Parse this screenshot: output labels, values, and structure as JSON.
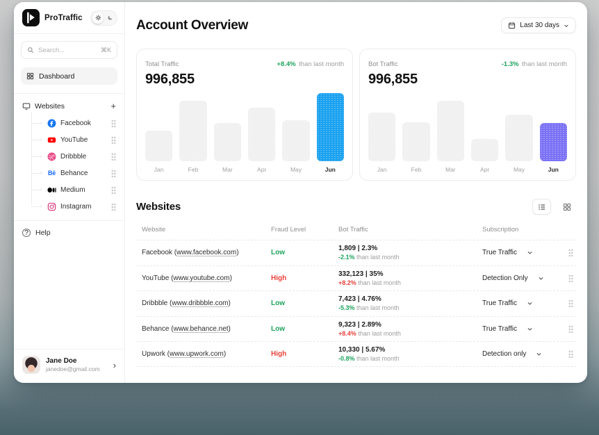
{
  "app": {
    "brand": "ProTraffic"
  },
  "theme": {
    "green": "#1da35c",
    "red": "#e8403a",
    "blue_bar": "#1ba2f0",
    "purple_bar": "#7b72f5"
  },
  "sidebar": {
    "search_placeholder": "Search...",
    "search_shortcut": "⌘K",
    "dashboard_label": "Dashboard",
    "websites_label": "Websites",
    "add_label": "+",
    "sites": [
      {
        "name": "Facebook",
        "icon": "facebook-icon"
      },
      {
        "name": "YouTube",
        "icon": "youtube-icon"
      },
      {
        "name": "Dribbble",
        "icon": "dribbble-icon"
      },
      {
        "name": "Behance",
        "icon": "behance-icon"
      },
      {
        "name": "Medium",
        "icon": "medium-icon"
      },
      {
        "name": "Instagram",
        "icon": "instagram-icon"
      }
    ],
    "help_label": "Help",
    "profile": {
      "name": "Jane Doe",
      "email": "janedoe@gmail.com"
    }
  },
  "header": {
    "title": "Account Overview",
    "date_range": "Last 30 days"
  },
  "cards": [
    {
      "label": "Total Traffic",
      "value": "996,855",
      "delta": "+8.4%",
      "delta_suffix": "than last month",
      "delta_color": "#1da35c",
      "accent": "#1ba2f0"
    },
    {
      "label": "Bot Traffic",
      "value": "996,855",
      "delta": "-1.3%",
      "delta_suffix": "than last month",
      "delta_color": "#1da35c",
      "accent": "#7b72f5"
    }
  ],
  "chart_data": [
    {
      "type": "bar",
      "title": "Total Traffic by month",
      "categories": [
        "Jan",
        "Feb",
        "Mar",
        "Apr",
        "May",
        "Jun"
      ],
      "values": [
        44,
        87,
        55,
        77,
        59,
        98
      ],
      "unit": "bar height px (relative traffic)",
      "highlight": "Jun",
      "highlight_color": "#1ba2f0",
      "grid": false
    },
    {
      "type": "bar",
      "title": "Bot Traffic by month",
      "categories": [
        "Jan",
        "Feb",
        "Mar",
        "Apr",
        "May",
        "Jun"
      ],
      "values": [
        70,
        56,
        87,
        32,
        67,
        55
      ],
      "unit": "bar height px (relative traffic)",
      "highlight": "Jun",
      "highlight_color": "#7b72f5",
      "grid": false
    }
  ],
  "websites_section": {
    "title": "Websites",
    "columns": [
      "Website",
      "Fraud Level",
      "Bot Traffic",
      "Subscription"
    ],
    "rows": [
      {
        "name": "Facebook",
        "url": "www.facebook.com",
        "fraud": "Low",
        "fraud_color": "#1da35c",
        "traffic": "1,809 | 2.3%",
        "delta": "-2.1%",
        "delta_color": "#1da35c",
        "delta_suffix": "than last month",
        "subscription": "True Traffic"
      },
      {
        "name": "YouTube",
        "url": "www.youtube.com",
        "fraud": "High",
        "fraud_color": "#e8403a",
        "traffic": "332,123 | 35%",
        "delta": "+8.2%",
        "delta_color": "#e8403a",
        "delta_suffix": "than last month",
        "subscription": "Detection Only"
      },
      {
        "name": "Dribbble",
        "url": "www.dribbble.com",
        "fraud": "Low",
        "fraud_color": "#1da35c",
        "traffic": "7,423 | 4.76%",
        "delta": "-5.3%",
        "delta_color": "#1da35c",
        "delta_suffix": "than last month",
        "subscription": "True Traffic"
      },
      {
        "name": "Behance",
        "url": "www.behance.net",
        "fraud": "Low",
        "fraud_color": "#1da35c",
        "traffic": "9,323 | 2.89%",
        "delta": "+8.4%",
        "delta_color": "#e8403a",
        "delta_suffix": "than last month",
        "subscription": "True Traffic"
      },
      {
        "name": "Upwork",
        "url": "www.upwork.com",
        "fraud": "High",
        "fraud_color": "#e8403a",
        "traffic": "10,330 | 5.67%",
        "delta": "-0.8%",
        "delta_color": "#1da35c",
        "delta_suffix": "than last month",
        "subscription": "Detection only"
      }
    ]
  }
}
